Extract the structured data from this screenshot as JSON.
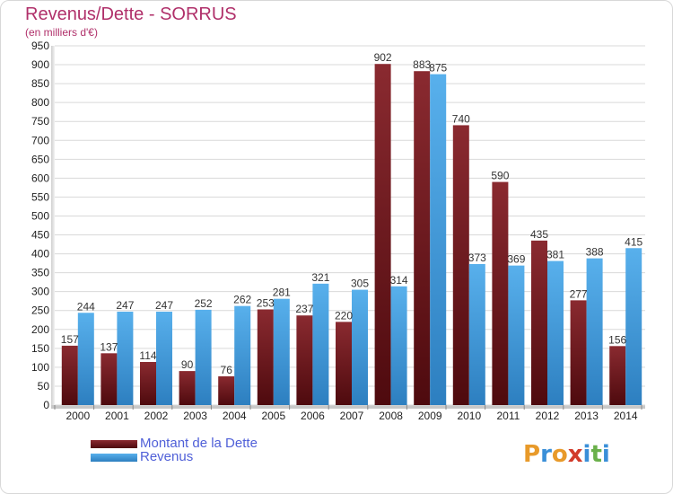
{
  "title": "Revenus/Dette - SORRUS",
  "subtitle": "(en milliers d'€)",
  "logo": {
    "letters": [
      "P",
      "r",
      "o",
      "x",
      "i",
      "t",
      "i"
    ],
    "colors": [
      "#e89a2a",
      "#3a8fd8",
      "#e89a2a",
      "#d23a2a",
      "#3a8fd8",
      "#6ab04a",
      "#3a8fd8"
    ]
  },
  "chart_data": {
    "type": "bar",
    "categories": [
      "2000",
      "2001",
      "2002",
      "2003",
      "2004",
      "2005",
      "2006",
      "2007",
      "2008",
      "2009",
      "2010",
      "2011",
      "2012",
      "2013",
      "2014"
    ],
    "series": [
      {
        "name": "Montant de la Dette",
        "color": "#7a1f25",
        "values": [
          157,
          137,
          114,
          90,
          76,
          253,
          237,
          220,
          902,
          883,
          740,
          590,
          435,
          277,
          156
        ]
      },
      {
        "name": "Revenus",
        "color": "#4aa3e0",
        "values": [
          244,
          247,
          247,
          252,
          262,
          281,
          321,
          305,
          314,
          875,
          373,
          369,
          381,
          388,
          415
        ]
      }
    ],
    "ylim": [
      0,
      950
    ],
    "yticks": [
      "0",
      "50",
      "100",
      "150",
      "200",
      "250",
      "300",
      "350",
      "400",
      "450",
      "500",
      "550",
      "600",
      "650",
      "700",
      "750",
      "800",
      "850",
      "900",
      "950"
    ],
    "grid": true,
    "legend": "bottom-left"
  }
}
